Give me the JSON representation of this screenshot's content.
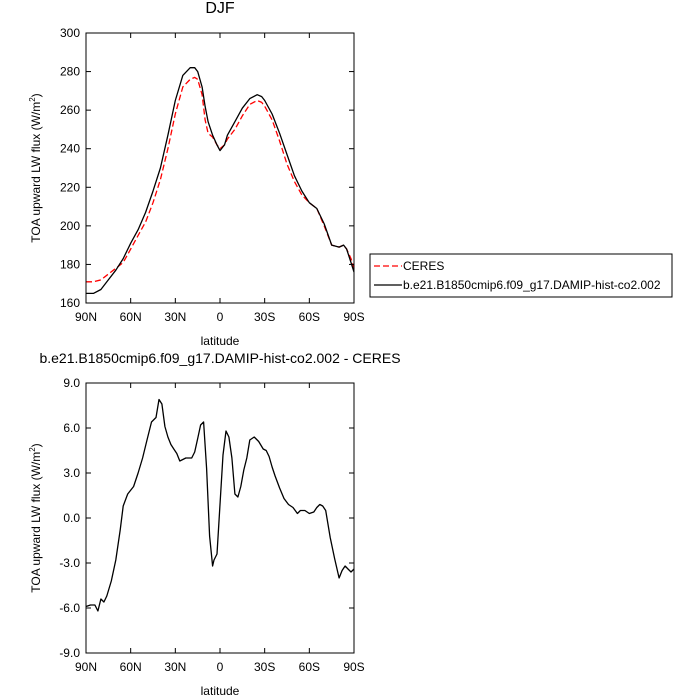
{
  "chart_data": [
    {
      "type": "line",
      "title": "DJF",
      "xlabel": "latitude",
      "ylabel": "TOA upward LW flux (W/m",
      "ylabel_sup": "2",
      "ylabel_close": ")",
      "xlim": [
        -90,
        90
      ],
      "ylim": [
        160,
        300
      ],
      "x_ticks": [
        -90,
        -60,
        -30,
        0,
        30,
        60,
        90
      ],
      "x_tick_labels": [
        "90N",
        "60N",
        "30N",
        "0",
        "30S",
        "60S",
        "90S"
      ],
      "y_ticks": [
        160,
        180,
        200,
        220,
        240,
        260,
        280,
        300
      ],
      "y_tick_labels": [
        "160",
        "180",
        "200",
        "220",
        "240",
        "260",
        "280",
        "300"
      ],
      "legend": "outside-right",
      "series": [
        {
          "name": "CERES",
          "color": "#ff0000",
          "dash": "dashed",
          "x": [
            -90,
            -85,
            -80,
            -75,
            -70,
            -65,
            -60,
            -55,
            -50,
            -45,
            -40,
            -35,
            -30,
            -25,
            -20,
            -17,
            -15,
            -12,
            -10,
            -8,
            -5,
            -2,
            0,
            3,
            5,
            10,
            15,
            20,
            25,
            28,
            30,
            35,
            40,
            45,
            50,
            55,
            60,
            65,
            70,
            75,
            80,
            83,
            85,
            88,
            90
          ],
          "y": [
            171,
            171,
            172,
            175,
            178,
            181,
            188,
            195,
            202,
            212,
            224,
            240,
            258,
            272,
            276,
            277,
            276,
            268,
            255,
            248,
            246,
            242,
            240,
            242,
            245,
            250,
            257,
            263,
            265,
            264,
            262,
            255,
            244,
            232,
            223,
            216,
            212,
            209,
            200,
            190,
            189,
            190,
            188,
            183,
            178
          ]
        },
        {
          "name": "b.e21.B1850cmip6.f09_g17.DAMIP-hist-co2.002",
          "color": "#000000",
          "dash": "solid",
          "x": [
            -90,
            -85,
            -80,
            -75,
            -70,
            -65,
            -60,
            -55,
            -50,
            -45,
            -40,
            -35,
            -30,
            -25,
            -20,
            -17,
            -15,
            -12,
            -10,
            -8,
            -5,
            -2,
            0,
            3,
            5,
            10,
            15,
            20,
            25,
            28,
            30,
            35,
            40,
            45,
            50,
            55,
            60,
            65,
            70,
            75,
            80,
            83,
            85,
            88,
            90
          ],
          "y": [
            165,
            165,
            167,
            172,
            177,
            183,
            191,
            198,
            207,
            218,
            230,
            247,
            265,
            278,
            282,
            282,
            280,
            272,
            262,
            254,
            247,
            242,
            239,
            242,
            247,
            254,
            261,
            266,
            268,
            267,
            265,
            258,
            248,
            237,
            226,
            218,
            212,
            209,
            201,
            190,
            189,
            190,
            188,
            181,
            176
          ]
        }
      ]
    },
    {
      "type": "line",
      "title": "b.e21.B1850cmip6.f09_g17.DAMIP-hist-co2.002 - CERES",
      "xlabel": "latitude",
      "ylabel": "TOA upward LW flux (W/m",
      "ylabel_sup": "2",
      "ylabel_close": ")",
      "xlim": [
        -90,
        90
      ],
      "ylim": [
        -9.0,
        9.0
      ],
      "x_ticks": [
        -90,
        -60,
        -30,
        0,
        30,
        60,
        90
      ],
      "x_tick_labels": [
        "90N",
        "60N",
        "30N",
        "0",
        "30S",
        "60S",
        "90S"
      ],
      "y_ticks": [
        -9.0,
        -6.0,
        -3.0,
        0.0,
        3.0,
        6.0,
        9.0
      ],
      "y_tick_labels": [
        "-9.0",
        "-6.0",
        "-3.0",
        "0.0",
        "3.0",
        "6.0",
        "9.0"
      ],
      "series": [
        {
          "name": "",
          "color": "#000000",
          "dash": "solid",
          "x": [
            -90,
            -87,
            -84,
            -82,
            -80,
            -78,
            -76,
            -73,
            -70,
            -67,
            -65,
            -62,
            -58,
            -55,
            -52,
            -49,
            -46,
            -43,
            -41,
            -39,
            -37,
            -35,
            -33,
            -31,
            -29,
            -27,
            -25,
            -23,
            -21,
            -19,
            -17,
            -15,
            -13,
            -11,
            -9,
            -7,
            -5,
            -4,
            -2,
            0,
            2,
            4,
            6,
            8,
            10,
            12,
            14,
            16,
            18,
            20,
            23,
            26,
            29,
            31,
            33,
            35,
            37,
            40,
            43,
            46,
            49,
            52,
            54,
            57,
            60,
            63,
            65,
            67,
            69,
            71,
            74,
            77,
            80,
            82,
            84,
            86,
            88,
            90
          ],
          "y": [
            -5.9,
            -5.8,
            -5.8,
            -6.2,
            -5.4,
            -5.6,
            -5.2,
            -4.2,
            -2.8,
            -0.8,
            0.8,
            1.6,
            2.1,
            3.0,
            4.0,
            5.2,
            6.4,
            6.7,
            7.9,
            7.6,
            6.1,
            5.4,
            4.9,
            4.6,
            4.3,
            3.8,
            3.9,
            4.0,
            4.0,
            4.0,
            4.4,
            5.3,
            6.2,
            6.4,
            3.3,
            -1.2,
            -3.2,
            -2.8,
            -2.4,
            0.9,
            4.2,
            5.8,
            5.4,
            4.0,
            1.6,
            1.4,
            2.1,
            3.2,
            4.0,
            5.2,
            5.4,
            5.1,
            4.6,
            4.5,
            4.1,
            3.4,
            2.8,
            2.0,
            1.3,
            0.9,
            0.7,
            0.3,
            0.5,
            0.5,
            0.3,
            0.4,
            0.7,
            0.9,
            0.8,
            0.5,
            -1.3,
            -2.7,
            -4.0,
            -3.5,
            -3.2,
            -3.4,
            -3.6,
            -3.4
          ]
        }
      ]
    }
  ]
}
